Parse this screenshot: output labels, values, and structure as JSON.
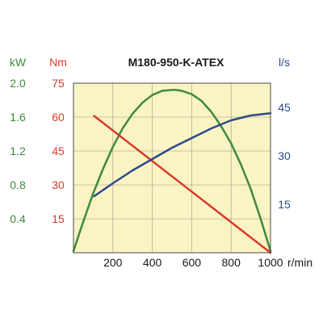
{
  "chart_data": {
    "type": "line",
    "title": "M180-950-K-ATEX",
    "background": "#faf3c4",
    "grid": true,
    "x": {
      "ticks": [
        200,
        400,
        600,
        800,
        1000
      ],
      "unit": "r/min",
      "lim": [
        0,
        1000
      ],
      "color": "#1a1a1a"
    },
    "axes": [
      {
        "id": "kw",
        "unit": "kW",
        "lim": [
          0,
          2.0
        ],
        "ticks": [
          "0.4",
          "0.8",
          "1.2",
          "1.6",
          "2.0"
        ],
        "color": "#3d8a3d"
      },
      {
        "id": "nm",
        "unit": "Nm",
        "lim": [
          0,
          75
        ],
        "ticks": [
          "15",
          "30",
          "45",
          "60",
          "75"
        ],
        "color": "#d93a2b"
      },
      {
        "id": "ls",
        "unit": "l/s",
        "lim": [
          0,
          52.5
        ],
        "ticks": [
          "15",
          "30",
          "45"
        ],
        "color": "#2e4a8a"
      }
    ],
    "series": [
      {
        "axis": "kw",
        "color": "#3d8a3d",
        "x": [
          0,
          50,
          100,
          150,
          200,
          250,
          300,
          350,
          400,
          450,
          500,
          520,
          550,
          600,
          650,
          700,
          750,
          800,
          850,
          900,
          950,
          1000
        ],
        "y": [
          0.02,
          0.37,
          0.7,
          0.99,
          1.25,
          1.47,
          1.64,
          1.77,
          1.86,
          1.91,
          1.92,
          1.92,
          1.91,
          1.87,
          1.79,
          1.66,
          1.49,
          1.29,
          1.04,
          0.75,
          0.4,
          0.02
        ]
      },
      {
        "axis": "nm",
        "color": "#d93a2b",
        "x": [
          105,
          1000
        ],
        "y": [
          60.5,
          0
        ]
      },
      {
        "axis": "ls",
        "color": "#2e4a8a",
        "x": [
          105,
          200,
          300,
          400,
          500,
          600,
          700,
          800,
          900,
          1000
        ],
        "y": [
          17.5,
          21.5,
          25.5,
          29.0,
          32.5,
          35.5,
          38.5,
          41.0,
          42.5,
          43.2
        ]
      }
    ]
  }
}
